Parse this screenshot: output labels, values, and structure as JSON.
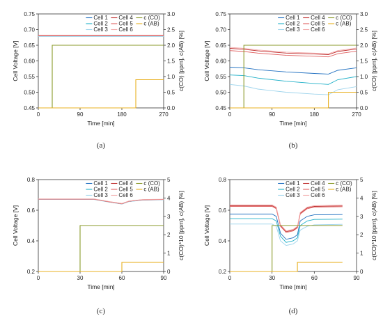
{
  "figure": {
    "panels": [
      {
        "id": "a",
        "label": "(a)"
      },
      {
        "id": "b",
        "label": "(b)"
      },
      {
        "id": "c",
        "label": "(c)"
      },
      {
        "id": "d",
        "label": "(d)"
      }
    ]
  },
  "chart_data": [
    {
      "type": "line",
      "panel_label": "(a)",
      "xlabel": "Time [min]",
      "ylabel": "Cell Voltage [V]",
      "y2label": "c(CO) [ppm], c(AB) [%]",
      "xlim": [
        0,
        270
      ],
      "ylim": [
        0.45,
        0.75
      ],
      "y2lim": [
        0.0,
        3.0
      ],
      "xticks": [
        0,
        90,
        180,
        270
      ],
      "yticks": [
        0.45,
        0.5,
        0.55,
        0.6,
        0.65,
        0.7,
        0.75
      ],
      "y2ticks": [
        0.0,
        0.5,
        1.0,
        1.5,
        2.0,
        2.5,
        3.0
      ],
      "legend": [
        "Cell 1",
        "Cell 4",
        "c (CO)",
        "Cell 2",
        "Cell 5",
        "c (AB)",
        "Cell 3",
        "Cell 6"
      ],
      "legend_position": "top-center",
      "series": [
        {
          "name": "Cell 1",
          "color": "#1f6fc0",
          "axis": "left",
          "x": [
            0,
            270
          ],
          "y": [
            0.68,
            0.68
          ]
        },
        {
          "name": "Cell 2",
          "color": "#20b0c8",
          "axis": "left",
          "x": [
            0,
            270
          ],
          "y": [
            0.679,
            0.679
          ]
        },
        {
          "name": "Cell 3",
          "color": "#9ed4ec",
          "axis": "left",
          "x": [
            0,
            270
          ],
          "y": [
            0.678,
            0.678
          ]
        },
        {
          "name": "Cell 4",
          "color": "#c03030",
          "axis": "left",
          "x": [
            0,
            270
          ],
          "y": [
            0.682,
            0.682
          ]
        },
        {
          "name": "Cell 5",
          "color": "#e06060",
          "axis": "left",
          "x": [
            0,
            270
          ],
          "y": [
            0.681,
            0.681
          ]
        },
        {
          "name": "Cell 6",
          "color": "#f2a8a8",
          "axis": "left",
          "x": [
            0,
            270
          ],
          "y": [
            0.68,
            0.68
          ]
        },
        {
          "name": "c (CO)",
          "color": "#8a9a2a",
          "axis": "right",
          "x": [
            0,
            30,
            30,
            270
          ],
          "y": [
            0,
            0,
            2.0,
            2.0
          ]
        },
        {
          "name": "c (AB)",
          "color": "#e8b020",
          "axis": "right",
          "x": [
            0,
            210,
            210,
            270
          ],
          "y": [
            0,
            0,
            0.9,
            0.9
          ]
        }
      ]
    },
    {
      "type": "line",
      "panel_label": "(b)",
      "xlabel": "Time [min]",
      "ylabel": "Cell Voltage [V]",
      "y2label": "c(CO) [ppm], c(AB) [%]",
      "xlim": [
        0,
        270
      ],
      "ylim": [
        0.45,
        0.75
      ],
      "y2lim": [
        0.0,
        3.0
      ],
      "xticks": [
        0,
        90,
        180,
        270
      ],
      "yticks": [
        0.45,
        0.5,
        0.55,
        0.6,
        0.65,
        0.7,
        0.75
      ],
      "y2ticks": [
        0.0,
        0.5,
        1.0,
        1.5,
        2.0,
        2.5,
        3.0
      ],
      "legend": [
        "Cell 1",
        "Cell 4",
        "c (CO)",
        "Cell 2",
        "Cell 5",
        "c (AB)",
        "Cell 3",
        "Cell 6"
      ],
      "legend_position": "top-center",
      "series": [
        {
          "name": "Cell 1",
          "color": "#1f6fc0",
          "axis": "left",
          "x": [
            0,
            30,
            60,
            120,
            180,
            210,
            230,
            270
          ],
          "y": [
            0.58,
            0.578,
            0.572,
            0.565,
            0.56,
            0.558,
            0.57,
            0.578
          ]
        },
        {
          "name": "Cell 2",
          "color": "#20b0c8",
          "axis": "left",
          "x": [
            0,
            30,
            60,
            120,
            180,
            210,
            230,
            270
          ],
          "y": [
            0.555,
            0.553,
            0.545,
            0.535,
            0.528,
            0.525,
            0.54,
            0.55
          ]
        },
        {
          "name": "Cell 3",
          "color": "#9ed4ec",
          "axis": "left",
          "x": [
            0,
            30,
            60,
            120,
            180,
            210,
            230,
            270
          ],
          "y": [
            0.525,
            0.52,
            0.51,
            0.5,
            0.494,
            0.492,
            0.508,
            0.518
          ]
        },
        {
          "name": "Cell 4",
          "color": "#c03030",
          "axis": "left",
          "x": [
            0,
            30,
            60,
            120,
            180,
            210,
            230,
            270
          ],
          "y": [
            0.64,
            0.637,
            0.632,
            0.625,
            0.622,
            0.62,
            0.63,
            0.638
          ]
        },
        {
          "name": "Cell 5",
          "color": "#e06060",
          "axis": "left",
          "x": [
            0,
            30,
            60,
            120,
            180,
            210,
            230,
            270
          ],
          "y": [
            0.633,
            0.63,
            0.625,
            0.618,
            0.615,
            0.613,
            0.623,
            0.631
          ]
        },
        {
          "name": "Cell 6",
          "color": "#f2a8a8",
          "axis": "left",
          "x": [
            0,
            30,
            60,
            120,
            180,
            210,
            230,
            270
          ],
          "y": [
            0.643,
            0.64,
            0.635,
            0.628,
            0.625,
            0.623,
            0.633,
            0.641
          ]
        },
        {
          "name": "c (CO)",
          "color": "#8a9a2a",
          "axis": "right",
          "x": [
            0,
            30,
            30,
            270
          ],
          "y": [
            0,
            0,
            2.0,
            2.0
          ]
        },
        {
          "name": "c (AB)",
          "color": "#e8b020",
          "axis": "right",
          "x": [
            0,
            210,
            210,
            270
          ],
          "y": [
            0,
            0,
            0.5,
            0.5
          ]
        }
      ]
    },
    {
      "type": "line",
      "panel_label": "(c)",
      "xlabel": "Time [min]",
      "ylabel": "Cell Voltage [V]",
      "y2label": "c(CO)*10 [ppm], c(AB) [%]",
      "xlim": [
        0,
        90
      ],
      "ylim": [
        0.2,
        0.8
      ],
      "y2lim": [
        0,
        5
      ],
      "xticks": [
        0,
        30,
        60,
        90
      ],
      "yticks": [
        0.2,
        0.4,
        0.6,
        0.8
      ],
      "y2ticks": [
        0,
        1,
        2,
        3,
        4,
        5
      ],
      "legend": [
        "Cell 1",
        "Cell 4",
        "c (CO)",
        "Cell 2",
        "Cell 5",
        "c (AB)",
        "Cell 3",
        "Cell 6"
      ],
      "legend_position": "top-center",
      "series": [
        {
          "name": "Cell 1",
          "color": "#1f6fc0",
          "axis": "left",
          "x": [
            0,
            40,
            50,
            60,
            65,
            75,
            90
          ],
          "y": [
            0.672,
            0.672,
            0.656,
            0.642,
            0.658,
            0.668,
            0.67
          ]
        },
        {
          "name": "Cell 2",
          "color": "#20b0c8",
          "axis": "left",
          "x": [
            0,
            40,
            50,
            60,
            65,
            75,
            90
          ],
          "y": [
            0.671,
            0.671,
            0.655,
            0.641,
            0.657,
            0.667,
            0.669
          ]
        },
        {
          "name": "Cell 3",
          "color": "#9ed4ec",
          "axis": "left",
          "x": [
            0,
            40,
            50,
            60,
            65,
            75,
            90
          ],
          "y": [
            0.67,
            0.67,
            0.654,
            0.64,
            0.656,
            0.666,
            0.668
          ]
        },
        {
          "name": "Cell 4",
          "color": "#c03030",
          "axis": "left",
          "x": [
            0,
            40,
            50,
            60,
            65,
            75,
            90
          ],
          "y": [
            0.673,
            0.673,
            0.657,
            0.643,
            0.659,
            0.669,
            0.671
          ]
        },
        {
          "name": "Cell 5",
          "color": "#e06060",
          "axis": "left",
          "x": [
            0,
            40,
            50,
            60,
            65,
            75,
            90
          ],
          "y": [
            0.672,
            0.672,
            0.656,
            0.642,
            0.658,
            0.668,
            0.67
          ]
        },
        {
          "name": "Cell 6",
          "color": "#f2a8a8",
          "axis": "left",
          "x": [
            0,
            40,
            50,
            60,
            65,
            75,
            90
          ],
          "y": [
            0.674,
            0.674,
            0.658,
            0.644,
            0.66,
            0.67,
            0.672
          ]
        },
        {
          "name": "c (CO)",
          "color": "#8a9a2a",
          "axis": "right",
          "x": [
            0,
            30,
            30,
            90
          ],
          "y": [
            0,
            0,
            2.5,
            2.5
          ]
        },
        {
          "name": "c (AB)",
          "color": "#e8b020",
          "axis": "right",
          "x": [
            0,
            60,
            60,
            90
          ],
          "y": [
            0,
            0,
            0.5,
            0.5
          ]
        }
      ]
    },
    {
      "type": "line",
      "panel_label": "(d)",
      "xlabel": "Time [min]",
      "ylabel": "Cell Voltage [V]",
      "y2label": "c(CO)*10 [ppm], c(AB) [%]",
      "xlim": [
        0,
        90
      ],
      "ylim": [
        0.2,
        0.8
      ],
      "y2lim": [
        0,
        5
      ],
      "xticks": [
        0,
        30,
        60,
        90
      ],
      "yticks": [
        0.2,
        0.4,
        0.6,
        0.8
      ],
      "y2ticks": [
        0,
        1,
        2,
        3,
        4,
        5
      ],
      "legend": [
        "Cell 1",
        "Cell 4",
        "c (CO)",
        "Cell 2",
        "Cell 5",
        "c (AB)",
        "Cell 3",
        "Cell 6"
      ],
      "legend_position": "top-center",
      "series": [
        {
          "name": "Cell 1",
          "color": "#1f6fc0",
          "axis": "left",
          "x": [
            0,
            30,
            33,
            36,
            40,
            45,
            48,
            50,
            55,
            60,
            80
          ],
          "y": [
            0.575,
            0.575,
            0.56,
            0.45,
            0.41,
            0.42,
            0.44,
            0.53,
            0.56,
            0.57,
            0.572
          ]
        },
        {
          "name": "Cell 2",
          "color": "#20b0c8",
          "axis": "left",
          "x": [
            0,
            30,
            33,
            36,
            40,
            45,
            48,
            50,
            55,
            60,
            80
          ],
          "y": [
            0.545,
            0.545,
            0.53,
            0.43,
            0.39,
            0.4,
            0.42,
            0.5,
            0.53,
            0.54,
            0.542
          ]
        },
        {
          "name": "Cell 3",
          "color": "#9ed4ec",
          "axis": "left",
          "x": [
            0,
            30,
            33,
            36,
            40,
            45,
            48,
            50,
            55,
            60,
            80
          ],
          "y": [
            0.51,
            0.51,
            0.495,
            0.4,
            0.37,
            0.38,
            0.4,
            0.47,
            0.495,
            0.505,
            0.508
          ]
        },
        {
          "name": "Cell 4",
          "color": "#c03030",
          "axis": "left",
          "x": [
            0,
            30,
            33,
            36,
            40,
            45,
            48,
            50,
            55,
            60,
            80
          ],
          "y": [
            0.63,
            0.63,
            0.615,
            0.5,
            0.46,
            0.47,
            0.49,
            0.58,
            0.615,
            0.625,
            0.628
          ]
        },
        {
          "name": "Cell 5",
          "color": "#e06060",
          "axis": "left",
          "x": [
            0,
            30,
            33,
            36,
            40,
            45,
            48,
            50,
            55,
            60,
            80
          ],
          "y": [
            0.625,
            0.625,
            0.61,
            0.495,
            0.455,
            0.465,
            0.485,
            0.575,
            0.61,
            0.62,
            0.623
          ]
        },
        {
          "name": "Cell 6",
          "color": "#f2a8a8",
          "axis": "left",
          "x": [
            0,
            30,
            33,
            36,
            40,
            45,
            48,
            50,
            55,
            60,
            80
          ],
          "y": [
            0.635,
            0.635,
            0.62,
            0.505,
            0.465,
            0.475,
            0.495,
            0.585,
            0.62,
            0.63,
            0.633
          ]
        },
        {
          "name": "c (CO)",
          "color": "#8a9a2a",
          "axis": "right",
          "x": [
            0,
            30,
            30,
            80
          ],
          "y": [
            0,
            0,
            2.5,
            2.5
          ]
        },
        {
          "name": "c (AB)",
          "color": "#e8b020",
          "axis": "right",
          "x": [
            0,
            48,
            48,
            80
          ],
          "y": [
            0,
            0,
            0.5,
            0.5
          ]
        }
      ]
    }
  ]
}
